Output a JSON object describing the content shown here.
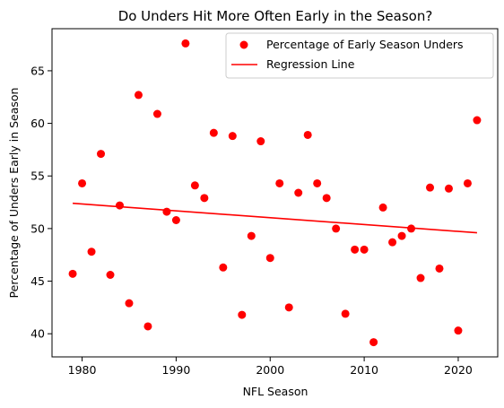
{
  "chart_data": {
    "type": "scatter",
    "title": "Do Unders Hit More Often Early in the Season?",
    "xlabel": "NFL Season",
    "ylabel": "Percentage of Unders Early in Season",
    "xlim": [
      1976.8,
      2024.2
    ],
    "ylim": [
      37.8,
      69.0
    ],
    "xticks": [
      1980,
      1990,
      2000,
      2010,
      2020
    ],
    "yticks": [
      40,
      45,
      50,
      55,
      60,
      65
    ],
    "grid": false,
    "legend_position": "top-right",
    "series": [
      {
        "name": "Percentage of Early Season Unders",
        "color": "#ff0000",
        "marker": "circle",
        "points": [
          [
            1979,
            45.7
          ],
          [
            1980,
            54.3
          ],
          [
            1981,
            47.8
          ],
          [
            1982,
            57.1
          ],
          [
            1983,
            45.6
          ],
          [
            1984,
            52.2
          ],
          [
            1985,
            42.9
          ],
          [
            1986,
            62.7
          ],
          [
            1987,
            40.7
          ],
          [
            1988,
            60.9
          ],
          [
            1989,
            51.6
          ],
          [
            1990,
            50.8
          ],
          [
            1991,
            67.6
          ],
          [
            1992,
            54.1
          ],
          [
            1993,
            52.9
          ],
          [
            1994,
            59.1
          ],
          [
            1995,
            46.3
          ],
          [
            1996,
            58.8
          ],
          [
            1997,
            41.8
          ],
          [
            1998,
            49.3
          ],
          [
            1999,
            58.3
          ],
          [
            2000,
            47.2
          ],
          [
            2001,
            54.3
          ],
          [
            2002,
            42.5
          ],
          [
            2003,
            53.4
          ],
          [
            2004,
            58.9
          ],
          [
            2005,
            54.3
          ],
          [
            2006,
            52.9
          ],
          [
            2007,
            50.0
          ],
          [
            2008,
            41.9
          ],
          [
            2009,
            48.0
          ],
          [
            2010,
            48.0
          ],
          [
            2011,
            39.2
          ],
          [
            2012,
            52.0
          ],
          [
            2013,
            48.7
          ],
          [
            2014,
            49.3
          ],
          [
            2015,
            50.0
          ],
          [
            2016,
            45.3
          ],
          [
            2017,
            53.9
          ],
          [
            2018,
            46.2
          ],
          [
            2019,
            53.8
          ],
          [
            2020,
            40.3
          ],
          [
            2021,
            54.3
          ],
          [
            2022,
            60.3
          ]
        ]
      },
      {
        "name": "Regression Line",
        "type": "line",
        "color": "#ff0000",
        "points": [
          [
            1979,
            52.4
          ],
          [
            2022,
            49.6
          ]
        ]
      }
    ]
  }
}
